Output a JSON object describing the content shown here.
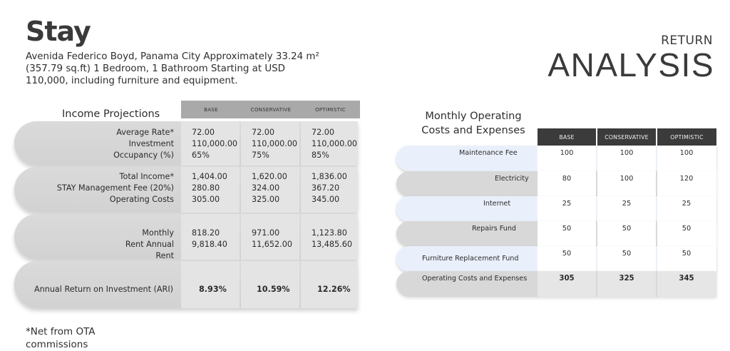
{
  "brand": "Stay",
  "address": "Avenida Federico Boyd, Panama City Approximately 33.24 m² (357.79 sq.ft) 1 Bedroom, 1 Bathroom Starting at USD 110,000, including furniture and equipment.",
  "title_small": "RETURN",
  "title_big": "ANALYSIS",
  "footnote": "*Net from OTA commissions",
  "income": {
    "title": "Income Projections",
    "headers": [
      "BASE",
      "CONSERVATIVE",
      "OPTIMISTIC"
    ],
    "rows": [
      {
        "label": "Average Rate*\nInvestment\nOccupancy (%)",
        "values": [
          "72.00\n110,000.00\n65%",
          "72.00\n110,000.00\n75%",
          "72.00\n110,000.00\n85%"
        ]
      },
      {
        "label": "Total Income*\nSTAY Management Fee (20%)\nOperating Costs",
        "values": [
          "1,404.00\n280.80\n305.00",
          "1,620.00\n324.00\n325.00",
          "1,836.00\n367.20\n345.00"
        ]
      },
      {
        "label": "Monthly\nRent Annual\nRent",
        "values": [
          "818.20\n9,818.40",
          "971.00\n11,652.00",
          "1,123.80\n13,485.60"
        ]
      },
      {
        "label": "Annual Return on Investment (ARI)",
        "values": [
          "8.93%",
          "10.59%",
          "12.26%"
        ]
      }
    ]
  },
  "operating": {
    "title": "Monthly Operating Costs and Expenses",
    "headers": [
      "BASE",
      "CONSERVATIVE",
      "OPTIMISTIC"
    ],
    "rows": [
      {
        "label": "Maintenance Fee",
        "values": [
          "100",
          "100",
          "100"
        ]
      },
      {
        "label": "Electricity",
        "values": [
          "80",
          "100",
          "120"
        ]
      },
      {
        "label": "Internet",
        "values": [
          "25",
          "25",
          "25"
        ]
      },
      {
        "label": "Repairs Fund",
        "values": [
          "50",
          "50",
          "50"
        ]
      },
      {
        "label": "Furniture Replacement Fund",
        "values": [
          "50",
          "50",
          "50"
        ]
      },
      {
        "label": "Operating Costs and Expenses",
        "values": [
          "305",
          "325",
          "345"
        ]
      }
    ]
  }
}
